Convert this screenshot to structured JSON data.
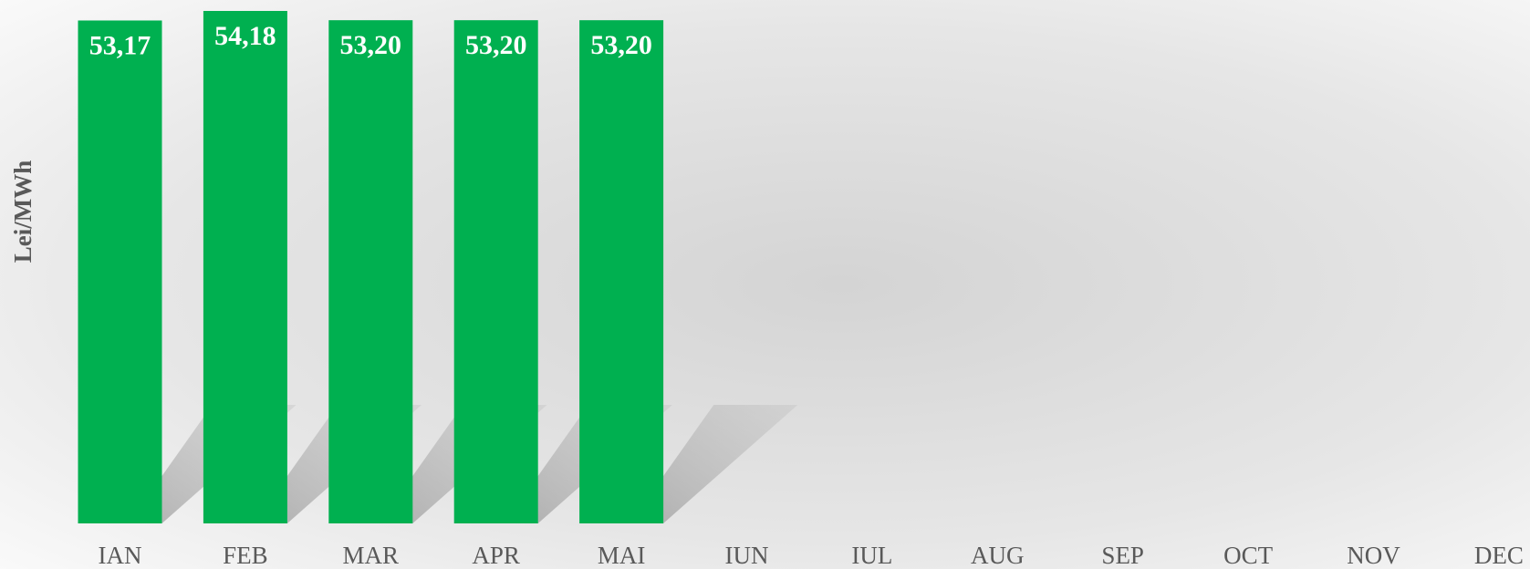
{
  "chart_data": {
    "type": "bar",
    "y_label": "Lei/MWh",
    "categories": [
      "IAN",
      "FEB",
      "MAR",
      "APR",
      "MAI",
      "IUN",
      "IUL",
      "AUG",
      "SEP",
      "OCT",
      "NOV",
      "DEC"
    ],
    "values": [
      53.17,
      54.18,
      53.2,
      53.2,
      53.2,
      null,
      null,
      null,
      null,
      null,
      null,
      null
    ],
    "value_labels": [
      "53,17",
      "54,18",
      "53,20",
      "53,20",
      "53,20",
      null,
      null,
      null,
      null,
      null,
      null,
      null
    ],
    "color": "#00b050"
  }
}
